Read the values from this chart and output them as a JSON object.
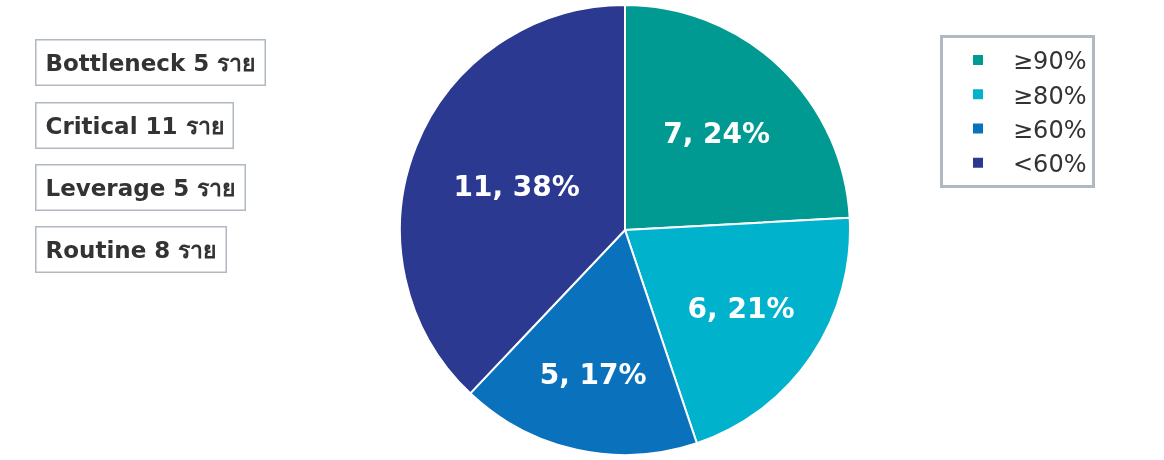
{
  "chart_data": {
    "type": "pie",
    "categories": [
      "≥90%",
      "≥80%",
      "≥60%",
      "<60%"
    ],
    "values": [
      7,
      6,
      5,
      11
    ],
    "colors": [
      "#009a93",
      "#00b2cc",
      "#0a72bc",
      "#2b3990"
    ],
    "value_labels": [
      "7, 24%",
      "6, 21%",
      "5, 17%",
      "11, 38%"
    ],
    "legend": "right",
    "annotations": [
      "Bottleneck 5 ราย",
      "Critical 11 ราย",
      "Leverage 5 ราย",
      "Routine 8 ราย"
    ]
  }
}
